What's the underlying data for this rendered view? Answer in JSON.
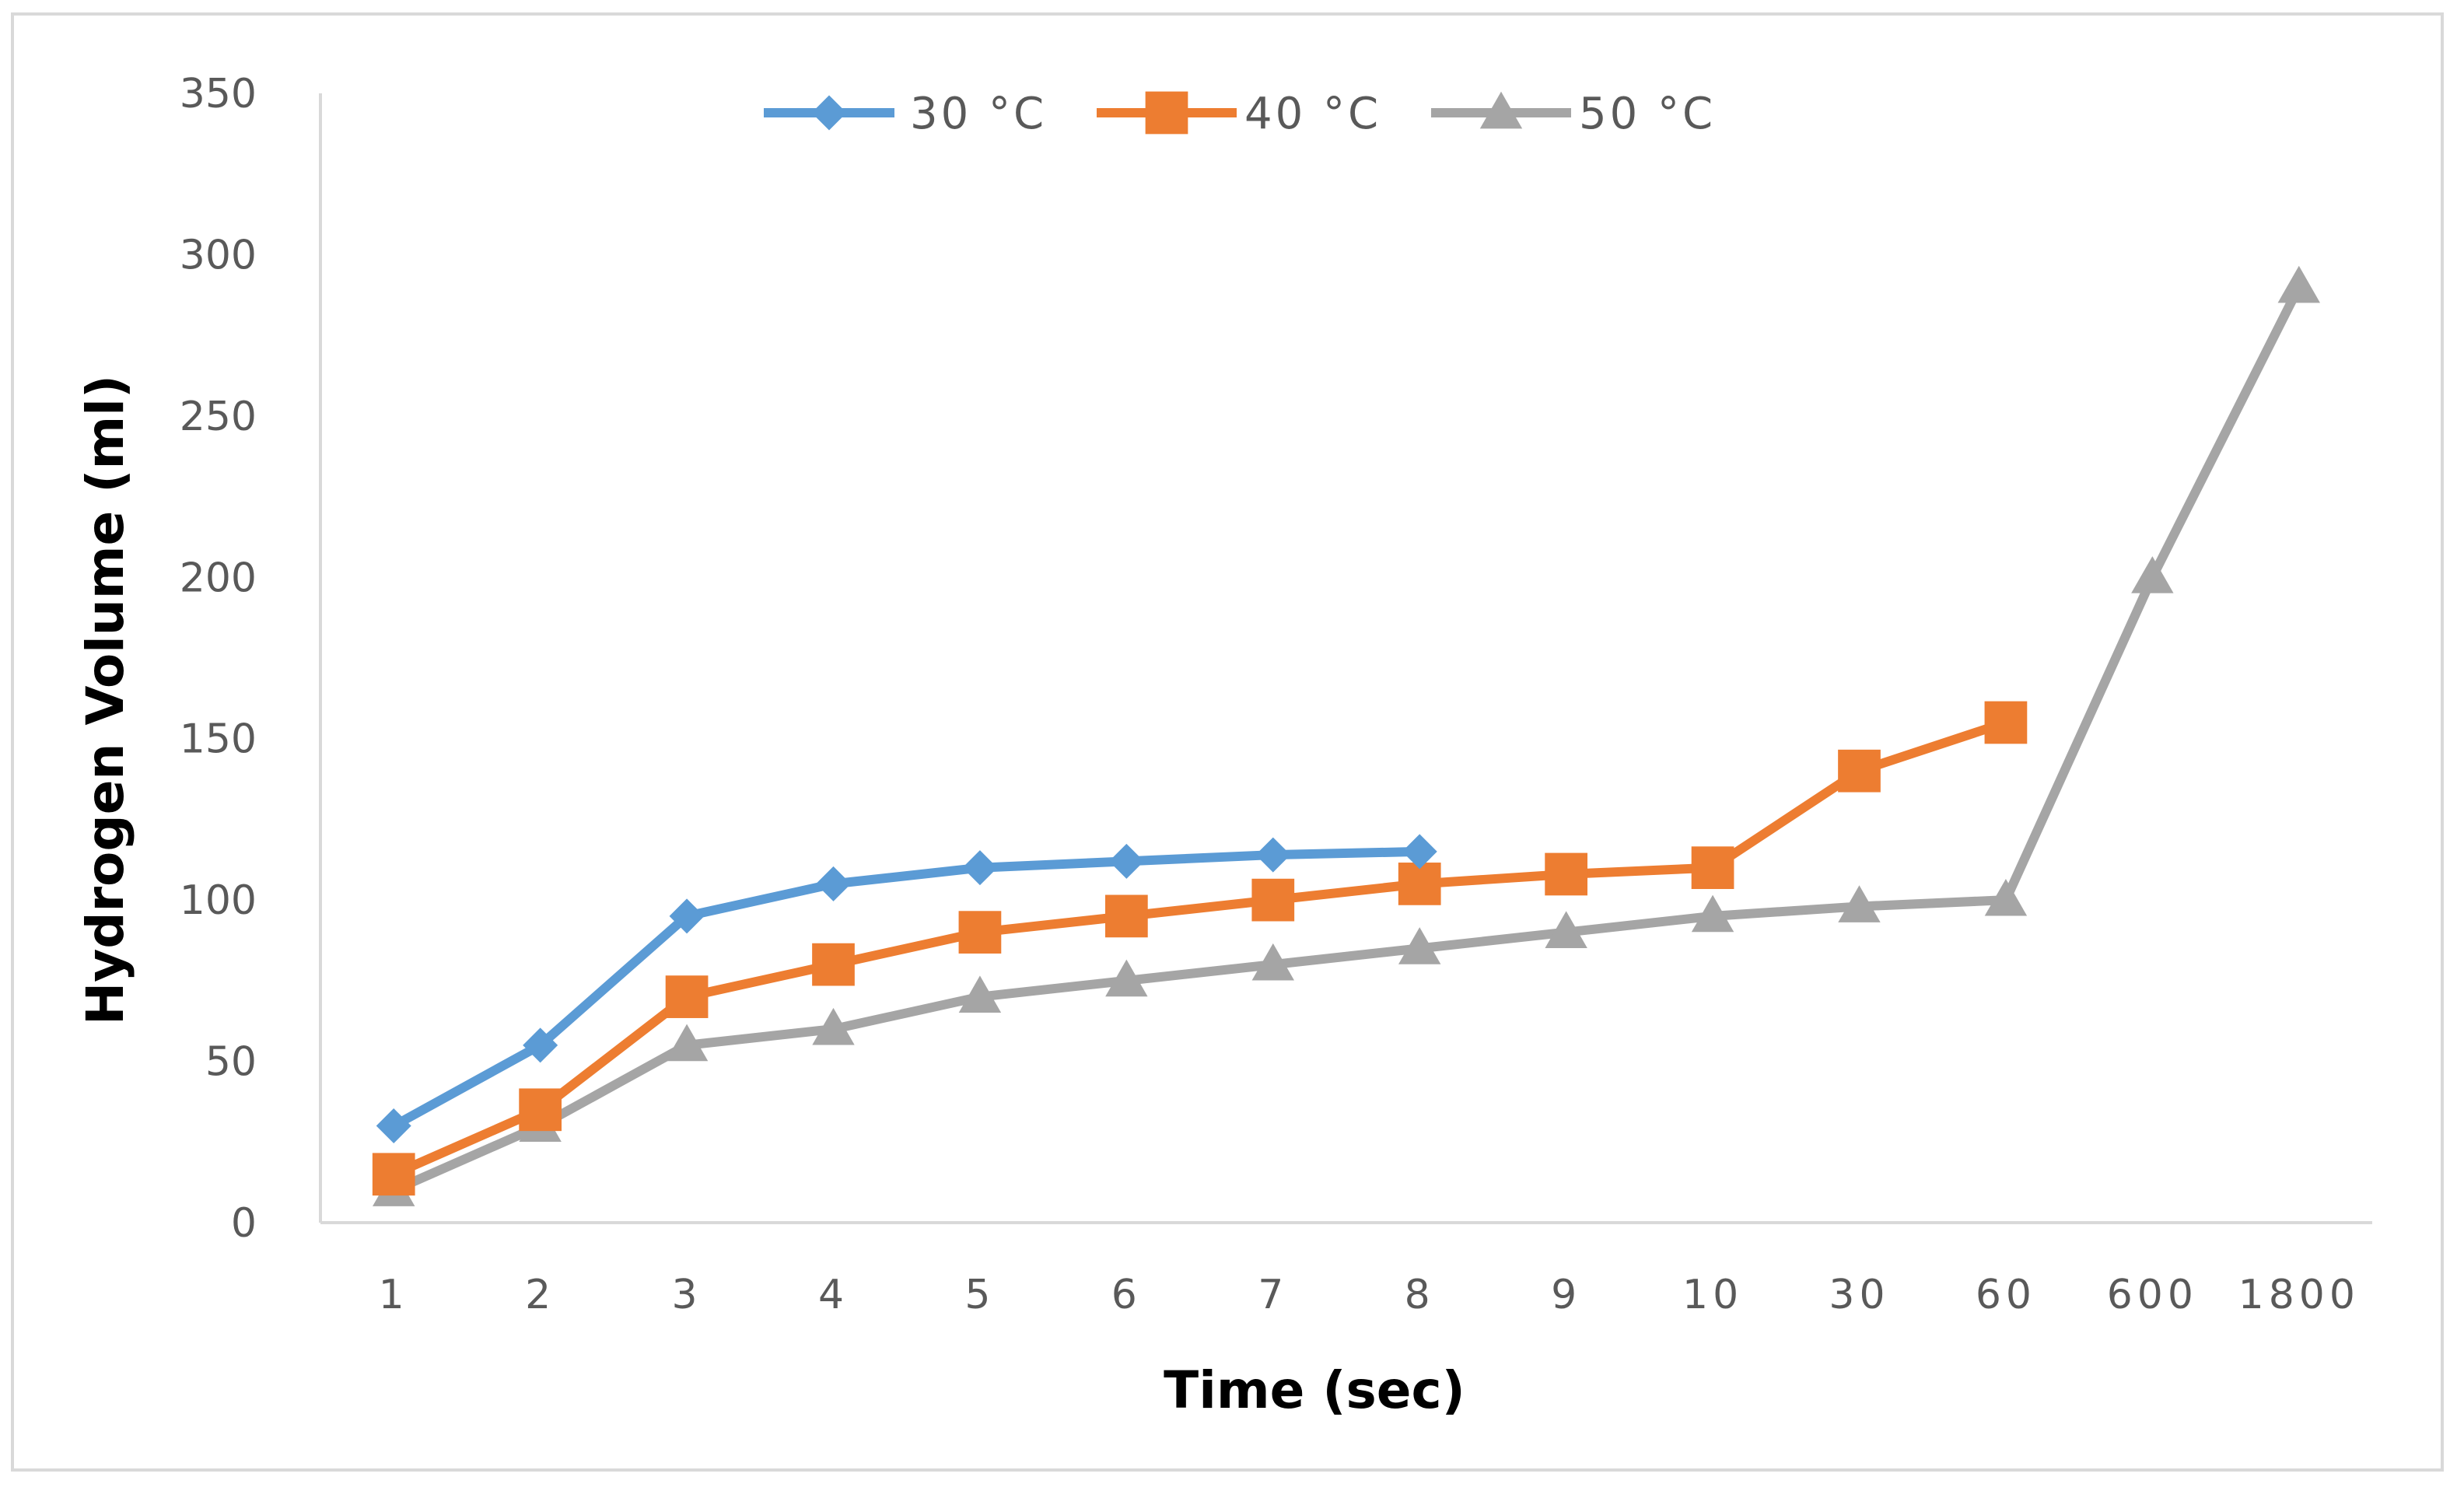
{
  "chart_data": {
    "type": "line",
    "title": "",
    "xlabel": "Time (sec)",
    "ylabel": "Hydrogen Volume (ml)",
    "categories": [
      "1",
      "2",
      "3",
      "4",
      "5",
      "6",
      "7",
      "8",
      "9",
      "10",
      "30",
      "60",
      "600",
      "1800"
    ],
    "ylim": [
      0,
      350
    ],
    "yticks": [
      "0",
      "50",
      "100",
      "150",
      "200",
      "250",
      "300",
      "350"
    ],
    "grid": false,
    "legend_position": "top-center",
    "series": [
      {
        "name": "30 °C",
        "color": "#5b9bd5",
        "marker": "diamond",
        "values": [
          30,
          55,
          95,
          105,
          110,
          112,
          114,
          115,
          null,
          null,
          null,
          null,
          null,
          null
        ]
      },
      {
        "name": "40 °C",
        "color": "#ed7d31",
        "marker": "square",
        "values": [
          15,
          35,
          70,
          80,
          90,
          95,
          100,
          105,
          108,
          110,
          140,
          155,
          null,
          null
        ]
      },
      {
        "name": "50 °C",
        "color": "#a5a5a5",
        "marker": "triangle",
        "values": [
          10,
          30,
          55,
          60,
          70,
          75,
          80,
          85,
          90,
          95,
          98,
          100,
          200,
          290
        ]
      }
    ]
  }
}
